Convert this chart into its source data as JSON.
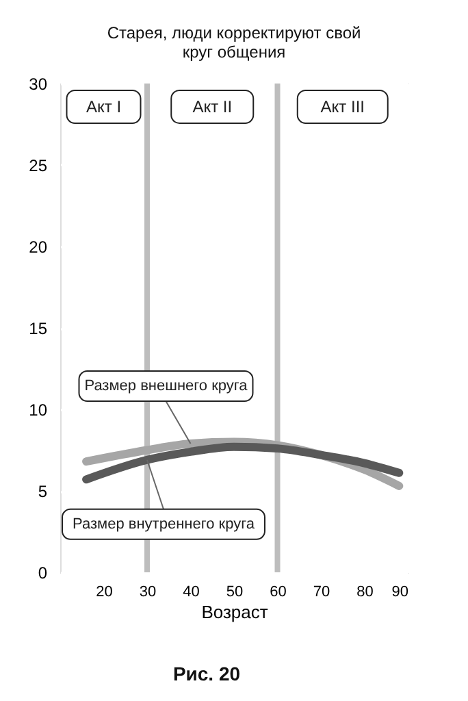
{
  "chart_data": {
    "type": "line",
    "title": "Старея, люди корректируют свой круг общения",
    "xlabel": "Возраст",
    "x": [
      16,
      30,
      40,
      50,
      60,
      70,
      80,
      88
    ],
    "series": [
      {
        "name": "Размер внешнего круга",
        "color": "#a6a6a6",
        "values": [
          6.8,
          7.5,
          7.9,
          8.0,
          7.8,
          7.2,
          6.3,
          5.3
        ]
      },
      {
        "name": "Размер внутреннего круга",
        "color": "#595959",
        "values": [
          5.7,
          6.9,
          7.4,
          7.7,
          7.6,
          7.2,
          6.7,
          6.1
        ]
      }
    ],
    "xlim": [
      10,
      90
    ],
    "xticks": [
      20,
      30,
      40,
      50,
      60,
      70,
      80,
      90
    ],
    "ylim": [
      0,
      30
    ],
    "yticks": [
      0,
      5,
      10,
      15,
      20,
      25,
      30
    ],
    "grid": true,
    "legend": false,
    "marker": "none",
    "line_style": "solid",
    "ref_lines": [
      {
        "axis": "x",
        "value": 30,
        "color": "#bdbdbd"
      },
      {
        "axis": "x",
        "value": 60,
        "color": "#bdbdbd"
      }
    ],
    "annotations": [
      "Акт I",
      "Акт II",
      "Акт III",
      "Рис. 20"
    ]
  }
}
